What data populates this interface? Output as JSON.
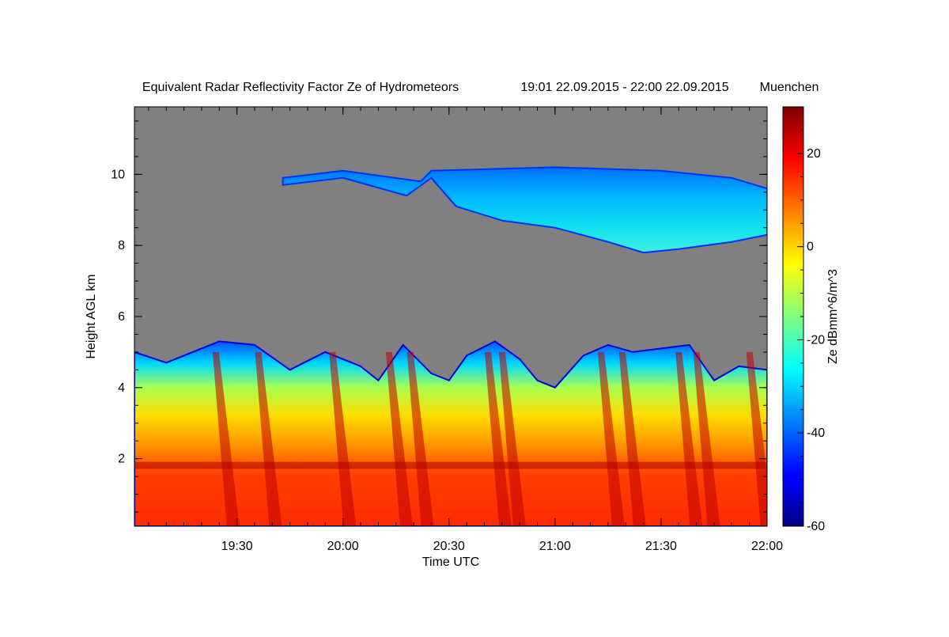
{
  "chart_data": {
    "type": "heatmap",
    "title": "Equivalent Radar Reflectivity Factor Ze of Hydrometeors",
    "time_range": "19:01 22.09.2015 - 22:00 22.09.2015",
    "location": "Muenchen",
    "xlabel": "Time UTC",
    "ylabel": "Height AGL km",
    "colorbar_label": "Ze dBmm^6/m^3",
    "x_range": [
      "19:01",
      "22:00"
    ],
    "x_ticks": [
      "19:30",
      "20:00",
      "20:30",
      "21:00",
      "21:30",
      "22:00"
    ],
    "y_range": [
      0.1,
      11.9
    ],
    "y_ticks": [
      "2",
      "4",
      "6",
      "8",
      "10"
    ],
    "color_range": [
      -60,
      30
    ],
    "colorbar_ticks": [
      "-60",
      "-40",
      "-20",
      "0",
      "20"
    ],
    "colormap": "jet",
    "background_color": "#808080",
    "features": {
      "low_cloud_top_km": [
        {
          "t": "19:01",
          "h": 5.0
        },
        {
          "t": "19:10",
          "h": 4.7
        },
        {
          "t": "19:25",
          "h": 5.3
        },
        {
          "t": "19:35",
          "h": 5.2
        },
        {
          "t": "19:45",
          "h": 4.5
        },
        {
          "t": "19:55",
          "h": 5.0
        },
        {
          "t": "20:05",
          "h": 4.6
        },
        {
          "t": "20:10",
          "h": 4.2
        },
        {
          "t": "20:17",
          "h": 5.2
        },
        {
          "t": "20:25",
          "h": 4.4
        },
        {
          "t": "20:30",
          "h": 4.2
        },
        {
          "t": "20:35",
          "h": 4.9
        },
        {
          "t": "20:43",
          "h": 5.3
        },
        {
          "t": "20:50",
          "h": 4.8
        },
        {
          "t": "20:55",
          "h": 4.2
        },
        {
          "t": "21:00",
          "h": 4.0
        },
        {
          "t": "21:08",
          "h": 4.9
        },
        {
          "t": "21:15",
          "h": 5.2
        },
        {
          "t": "21:22",
          "h": 5.0
        },
        {
          "t": "21:30",
          "h": 5.1
        },
        {
          "t": "21:38",
          "h": 5.2
        },
        {
          "t": "21:45",
          "h": 4.2
        },
        {
          "t": "21:52",
          "h": 4.6
        },
        {
          "t": "22:00",
          "h": 4.5
        }
      ],
      "upper_cloud": {
        "start": "19:43",
        "end": "22:00",
        "top_km": [
          {
            "t": "19:43",
            "h": 9.9
          },
          {
            "t": "20:00",
            "h": 10.1
          },
          {
            "t": "20:22",
            "h": 9.8
          },
          {
            "t": "20:25",
            "h": 10.1
          },
          {
            "t": "21:00",
            "h": 10.2
          },
          {
            "t": "21:30",
            "h": 10.1
          },
          {
            "t": "21:50",
            "h": 9.9
          },
          {
            "t": "22:00",
            "h": 9.6
          }
        ],
        "base_km": [
          {
            "t": "19:43",
            "h": 9.7
          },
          {
            "t": "20:00",
            "h": 9.9
          },
          {
            "t": "20:18",
            "h": 9.4
          },
          {
            "t": "20:25",
            "h": 9.9
          },
          {
            "t": "20:32",
            "h": 9.1
          },
          {
            "t": "20:45",
            "h": 8.7
          },
          {
            "t": "21:00",
            "h": 8.5
          },
          {
            "t": "21:15",
            "h": 8.1
          },
          {
            "t": "21:25",
            "h": 7.8
          },
          {
            "t": "21:35",
            "h": 7.9
          },
          {
            "t": "21:50",
            "h": 8.1
          },
          {
            "t": "22:00",
            "h": 8.3
          }
        ],
        "typical_ze_dbz": -28
      },
      "melting_layer_km": 1.8,
      "fall_streaks_ze_dbz": 20
    }
  }
}
